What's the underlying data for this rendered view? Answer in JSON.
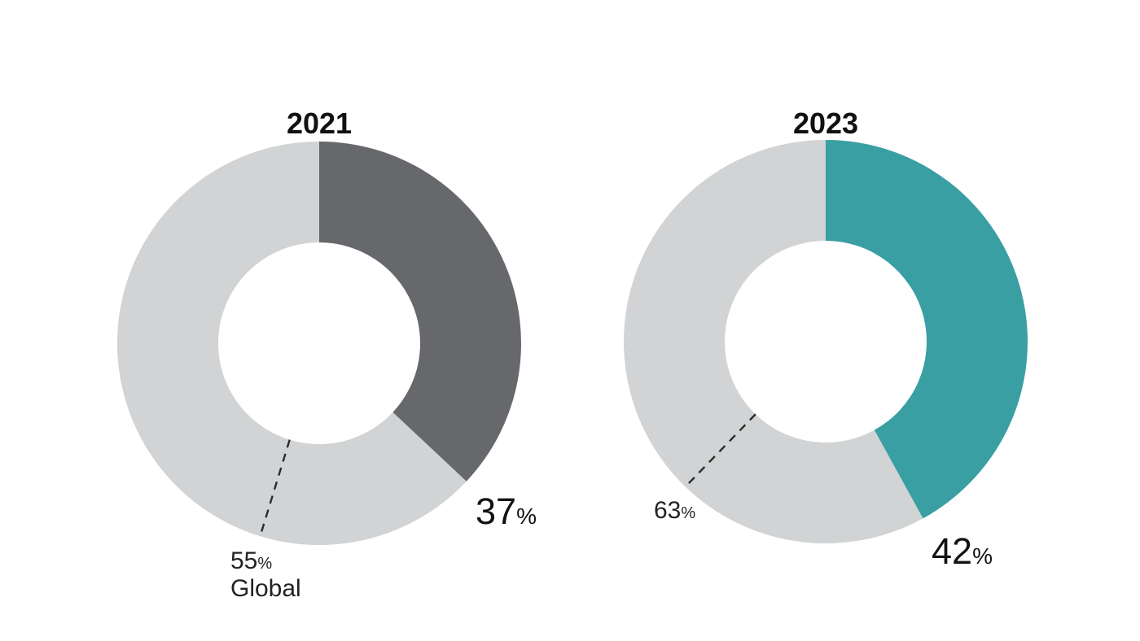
{
  "chart_data": [
    {
      "type": "pie",
      "variant": "donut",
      "title": "2021",
      "start_angle_deg": 0,
      "clockwise": true,
      "inner_radius_ratio": 0.5,
      "slices": [
        {
          "name": "highlight",
          "value": 37,
          "color": "#66686C",
          "label": "37%"
        },
        {
          "name": "remainder",
          "value": 63,
          "color": "#D1D3D4",
          "label": ""
        }
      ],
      "value_label": {
        "number": "37",
        "sign": "%"
      },
      "callout": {
        "number": "55",
        "sign": "%",
        "caption": "Global",
        "leader_angle_deg": 197,
        "leader_style": "dashed"
      }
    },
    {
      "type": "pie",
      "variant": "donut",
      "title": "2023",
      "start_angle_deg": 0,
      "clockwise": true,
      "inner_radius_ratio": 0.5,
      "slices": [
        {
          "name": "highlight",
          "value": 42,
          "color": "#399FA2",
          "label": "42%"
        },
        {
          "name": "remainder",
          "value": 58,
          "color": "#D1D3D4",
          "label": ""
        }
      ],
      "value_label": {
        "number": "42",
        "sign": "%"
      },
      "callout": {
        "number": "63",
        "sign": "%",
        "caption": "",
        "leader_angle_deg": 224,
        "leader_style": "dashed"
      }
    }
  ],
  "colors": {
    "highlight_2021": "#66686C",
    "highlight_2023": "#399FA2",
    "remainder_gray": "#D1D3D4",
    "leader_line": "#2B2B2B",
    "text": "#111111",
    "background": "#FFFFFF"
  }
}
